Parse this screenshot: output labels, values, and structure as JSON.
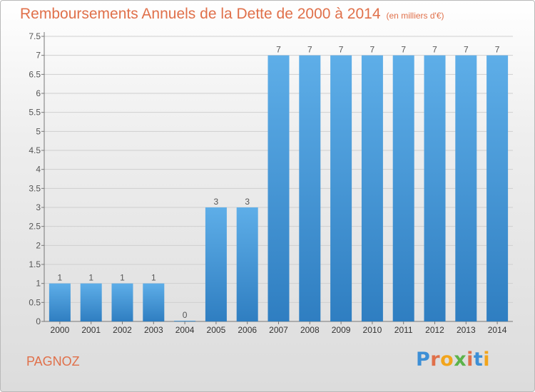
{
  "header": {
    "title": "Remboursements Annuels de la Dette de 2000 à 2014",
    "unit": "(en milliers d'€)"
  },
  "footer": {
    "commune": "PAGNOZ",
    "brand": {
      "letters": [
        "P",
        "r",
        "o",
        "x",
        "i",
        "t",
        "i"
      ],
      "colors": [
        "#3d8fd6",
        "#e0704a",
        "#f2a51c",
        "#5cb34a",
        "#e0704a",
        "#3d8fd6",
        "#f2a51c"
      ]
    }
  },
  "colors": {
    "title": "#e0704a",
    "bar_light": "#5eaee8",
    "bar_dark": "#2f7ec1",
    "grid": "#cfcfcf",
    "axis": "#777777",
    "text": "#555555"
  },
  "chart_data": {
    "type": "bar",
    "title": "Remboursements Annuels de la Dette de 2000 à 2014",
    "subtitle": "(en milliers d'€)",
    "xlabel": "",
    "ylabel": "",
    "categories": [
      "2000",
      "2001",
      "2002",
      "2003",
      "2004",
      "2005",
      "2006",
      "2007",
      "2008",
      "2009",
      "2010",
      "2011",
      "2012",
      "2013",
      "2014"
    ],
    "values": [
      1,
      1,
      1,
      1,
      0,
      3,
      3,
      7,
      7,
      7,
      7,
      7,
      7,
      7,
      7
    ],
    "data_labels": [
      "1",
      "1",
      "1",
      "1",
      "0",
      "3",
      "3",
      "7",
      "7",
      "7",
      "7",
      "7",
      "7",
      "7",
      "7"
    ],
    "ylim": [
      0,
      7.5
    ],
    "yticks": [
      "0",
      "0.5",
      "1",
      "1.5",
      "2",
      "2.5",
      "3",
      "3.5",
      "4",
      "4.5",
      "5",
      "5.5",
      "6",
      "6.5",
      "7",
      "7.5"
    ],
    "grid": true,
    "legend": "none"
  }
}
